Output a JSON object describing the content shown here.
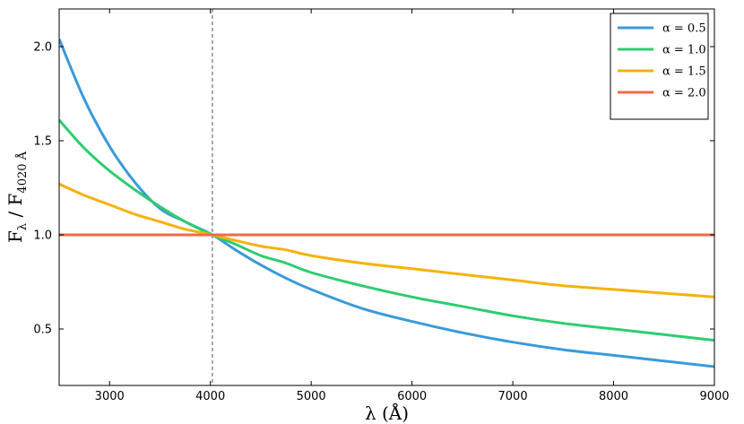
{
  "chart_data": {
    "type": "line",
    "title": "",
    "xlabel": "λ (Å)",
    "ylabel": {
      "main": "F",
      "sub1": "λ",
      "sep": " / F",
      "sub2": "4020 Å"
    },
    "xlim": [
      2500,
      9000
    ],
    "ylim": [
      0.2,
      2.2
    ],
    "xticks": [
      3000,
      4000,
      5000,
      6000,
      7000,
      8000,
      9000
    ],
    "yticks": [
      0.5,
      1.0,
      1.5,
      2.0
    ],
    "ytick_labels": [
      "0.5",
      "1.0",
      "1.5",
      "2.0"
    ],
    "grid": false,
    "legend_position": "top-right",
    "reference_line": {
      "x": 4020,
      "style": "dashed",
      "color": "#555555"
    },
    "x": [
      2500,
      2750,
      3000,
      3250,
      3500,
      3750,
      4020,
      4250,
      4500,
      4750,
      5000,
      5500,
      6000,
      6500,
      7000,
      7500,
      8000,
      8500,
      9000
    ],
    "series": [
      {
        "name": "α = 0.5",
        "color": "#3a9ad9",
        "values": [
          2.04,
          1.72,
          1.47,
          1.28,
          1.14,
          1.07,
          1.0,
          0.92,
          0.84,
          0.77,
          0.71,
          0.61,
          0.54,
          0.48,
          0.43,
          0.39,
          0.36,
          0.33,
          0.3
        ]
      },
      {
        "name": "α = 1.0",
        "color": "#2ecc71",
        "values": [
          1.61,
          1.46,
          1.34,
          1.24,
          1.15,
          1.07,
          1.0,
          0.95,
          0.89,
          0.85,
          0.8,
          0.73,
          0.67,
          0.62,
          0.57,
          0.53,
          0.5,
          0.47,
          0.44
        ]
      },
      {
        "name": "α = 1.5",
        "color": "#f5b20e",
        "values": [
          1.27,
          1.21,
          1.16,
          1.11,
          1.07,
          1.03,
          1.0,
          0.97,
          0.94,
          0.92,
          0.89,
          0.85,
          0.82,
          0.79,
          0.76,
          0.73,
          0.71,
          0.69,
          0.67
        ]
      },
      {
        "name": "α = 2.0",
        "color": "#f0684a",
        "values": [
          1.0,
          1.0,
          1.0,
          1.0,
          1.0,
          1.0,
          1.0,
          1.0,
          1.0,
          1.0,
          1.0,
          1.0,
          1.0,
          1.0,
          1.0,
          1.0,
          1.0,
          1.0,
          1.0
        ]
      }
    ]
  }
}
